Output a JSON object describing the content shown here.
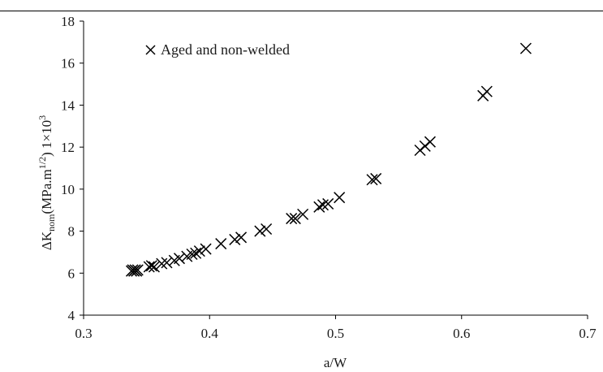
{
  "chart_data": {
    "type": "scatter",
    "title": "",
    "xlabel": "a/W",
    "ylabel": {
      "delta": "ΔK",
      "sub": "nom",
      "mid": "(MPa.m",
      "sup": "1/2",
      "end": ") 1×10",
      "sup2": "3"
    },
    "xlim": [
      0.3,
      0.7
    ],
    "ylim": [
      4,
      18
    ],
    "x_ticks": [
      "0.3",
      "0.4",
      "0.5",
      "0.6",
      "0.7"
    ],
    "y_ticks": [
      "4",
      "6",
      "8",
      "10",
      "12",
      "14",
      "16",
      "18"
    ],
    "grid": false,
    "legend_position": "top-left",
    "series": [
      {
        "name": "Aged and non-welded",
        "marker": "x",
        "color": "#000000",
        "x": [
          0.338,
          0.339,
          0.34,
          0.341,
          0.342,
          0.343,
          0.352,
          0.354,
          0.356,
          0.362,
          0.366,
          0.372,
          0.376,
          0.382,
          0.386,
          0.389,
          0.392,
          0.397,
          0.409,
          0.42,
          0.425,
          0.44,
          0.445,
          0.465,
          0.468,
          0.474,
          0.487,
          0.49,
          0.494,
          0.503,
          0.529,
          0.532,
          0.567,
          0.571,
          0.575,
          0.617,
          0.62,
          0.651
        ],
        "y": [
          6.1,
          6.15,
          6.1,
          6.15,
          6.1,
          6.15,
          6.3,
          6.35,
          6.3,
          6.45,
          6.5,
          6.6,
          6.7,
          6.8,
          6.9,
          6.95,
          7.05,
          7.15,
          7.4,
          7.6,
          7.7,
          8.0,
          8.1,
          8.6,
          8.6,
          8.8,
          9.15,
          9.25,
          9.3,
          9.6,
          10.45,
          10.5,
          11.85,
          12.05,
          12.25,
          14.45,
          14.65,
          16.7
        ]
      }
    ]
  }
}
